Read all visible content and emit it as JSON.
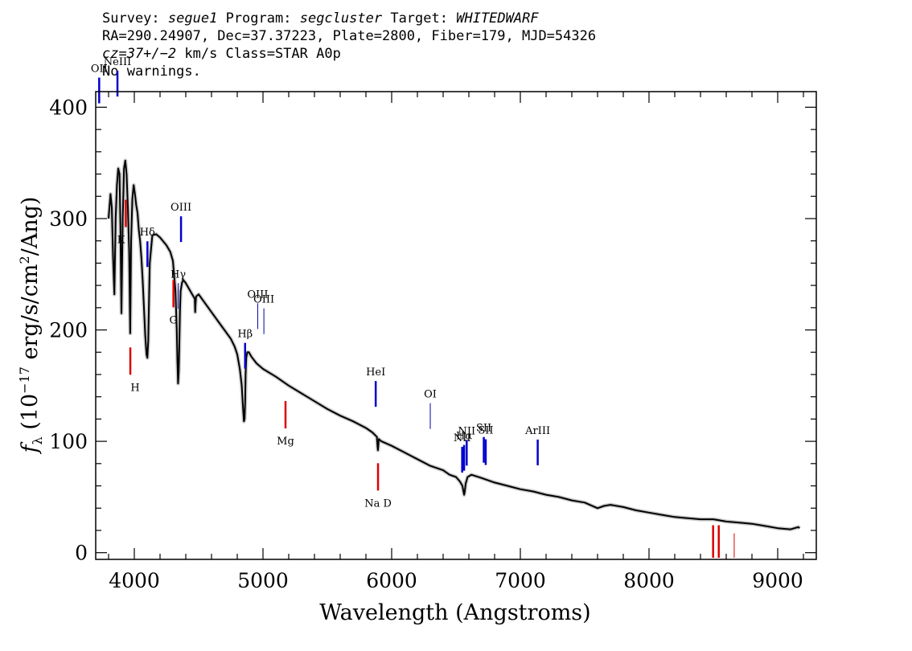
{
  "header": {
    "survey_label": "Survey:",
    "survey": "segue1",
    "program_label": "Program:",
    "program": "segcluster",
    "target_label": "Target:",
    "target": "WHITEDWARF",
    "line2": "RA=290.24907, Dec=37.37223, Plate=2800, Fiber=179, MJD=54326",
    "cz": "cz=37+/−2",
    "cz_rest": " km/s Class=STAR A0p",
    "line4": "No warnings."
  },
  "chart_data": {
    "type": "line",
    "title": "",
    "xlabel": "Wavelength (Angstroms)",
    "ylabel": "fλ (10⁻¹⁷ erg/s/cm²/Ang)",
    "ylabel_parts": {
      "f": "f",
      "lambda": "λ",
      "unit_open": " (10",
      "exp": "−17",
      "unit_mid": " erg/s/cm",
      "sq": "2",
      "unit_close": "/Ang)"
    },
    "xlim": [
      3700,
      9300
    ],
    "ylim": [
      -6,
      414
    ],
    "xticks": [
      4000,
      5000,
      6000,
      7000,
      8000,
      9000
    ],
    "yticks": [
      0,
      100,
      200,
      300,
      400
    ],
    "grid": false,
    "series": [
      {
        "x": [
          3800,
          3815,
          3825,
          3835,
          3845,
          3855,
          3865,
          3875,
          3885,
          3892,
          3900,
          3910,
          3920,
          3930,
          3940,
          3950,
          3960,
          3968,
          3975,
          3985,
          3995,
          4005,
          4015,
          4025,
          4035,
          4045,
          4055,
          4065,
          4075,
          4085,
          4095,
          4101,
          4108,
          4120,
          4140,
          4170,
          4200,
          4250,
          4280,
          4300,
          4310,
          4320,
          4330,
          4335,
          4340,
          4345,
          4350,
          4355,
          4360,
          4370,
          4380,
          4400,
          4420,
          4450,
          4470,
          4473,
          4476,
          4480,
          4500,
          4550,
          4600,
          4650,
          4700,
          4750,
          4780,
          4800,
          4820,
          4835,
          4845,
          4852,
          4857,
          4861,
          4865,
          4870,
          4878,
          4890,
          4910,
          4950,
          5000,
          5100,
          5200,
          5300,
          5400,
          5500,
          5600,
          5700,
          5800,
          5850,
          5885,
          5890,
          5893,
          5896,
          5900,
          5920,
          6000,
          6100,
          6200,
          6300,
          6400,
          6450,
          6500,
          6530,
          6550,
          6558,
          6563,
          6568,
          6575,
          6590,
          6620,
          6700,
          6800,
          6900,
          7000,
          7100,
          7200,
          7300,
          7400,
          7500,
          7600,
          7650,
          7700,
          7800,
          7900,
          8000,
          8100,
          8200,
          8300,
          8400,
          8500,
          8600,
          8700,
          8800,
          8900,
          9000,
          9100,
          9160,
          9170
        ],
        "y": [
          300,
          322,
          310,
          265,
          232,
          300,
          330,
          345,
          340,
          295,
          215,
          300,
          345,
          352,
          340,
          310,
          270,
          197,
          280,
          318,
          330,
          322,
          312,
          305,
          290,
          280,
          265,
          245,
          220,
          195,
          178,
          175,
          190,
          260,
          285,
          286,
          283,
          276,
          270,
          262,
          248,
          235,
          200,
          172,
          152,
          162,
          188,
          218,
          235,
          242,
          245,
          242,
          238,
          232,
          228,
          216,
          224,
          230,
          232,
          224,
          216,
          208,
          200,
          192,
          185,
          178,
          165,
          150,
          130,
          118,
          120,
          135,
          160,
          175,
          180,
          180,
          176,
          170,
          165,
          158,
          150,
          143,
          136,
          129,
          123,
          118,
          112,
          108,
          104,
          96,
          92,
          96,
          102,
          100,
          96,
          90,
          84,
          78,
          74,
          70,
          68,
          64,
          60,
          55,
          52,
          55,
          62,
          68,
          70,
          67,
          63,
          60,
          57,
          55,
          52,
          50,
          47,
          45,
          40,
          42,
          43,
          41,
          38,
          36,
          34,
          32,
          31,
          30,
          30,
          28,
          27,
          26,
          24,
          22,
          21,
          23,
          22
        ]
      }
    ],
    "emission_lines": [
      {
        "label": "OII",
        "x": 3727
      },
      {
        "label": "NeIII",
        "x": 3869
      },
      {
        "label": "Hδ",
        "x": 4102
      },
      {
        "label": "Hγ",
        "x": 4341
      },
      {
        "label": "OIII",
        "x": 4363
      },
      {
        "label": "Hβ",
        "x": 4861
      },
      {
        "label": "OIII",
        "x": 4959
      },
      {
        "label": "OIII",
        "x": 5007
      },
      {
        "label": "HeI",
        "x": 5876
      },
      {
        "label": "OI",
        "x": 6300
      },
      {
        "label": "NII",
        "x": 6548
      },
      {
        "label": "Hα",
        "x": 6563
      },
      {
        "label": "NII",
        "x": 6583
      },
      {
        "label": "SII",
        "x": 6716
      },
      {
        "label": "SII",
        "x": 6731
      },
      {
        "label": "ArIII",
        "x": 7135
      }
    ],
    "absorption_lines": [
      {
        "label": "K",
        "x": 3934
      },
      {
        "label": "H",
        "x": 3969
      },
      {
        "label": "G",
        "x": 4304
      },
      {
        "label": "Mg",
        "x": 5175
      },
      {
        "label": "Na D",
        "x": 5894
      },
      {
        "label": "",
        "x": 8498
      },
      {
        "label": "",
        "x": 8542
      },
      {
        "label": "",
        "x": 8662
      }
    ],
    "colors": {
      "spectrum": "#000000",
      "error_band": "#a8a8a8",
      "emission": "#0000cc",
      "absorption": "#dd0000",
      "axes": "#000000"
    }
  }
}
